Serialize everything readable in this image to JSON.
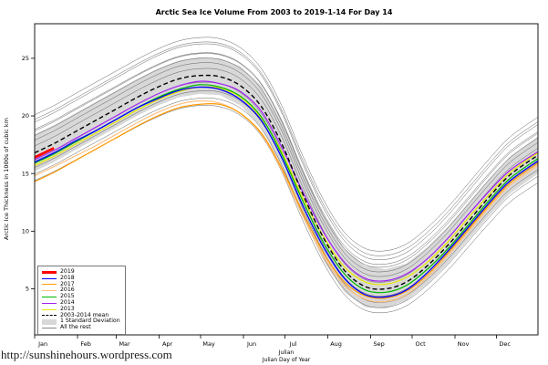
{
  "page": {
    "footer_url": "http://sunshinehours.wordpress.com"
  },
  "chart_data": {
    "type": "line",
    "title": "Arctic Sea Ice Volume From 2003 to 2019-1-14  For Day 14",
    "ylabel": "Arctic Ice Thickness in 1000s of cubic km",
    "xlabel_line1": "Julian",
    "xlabel_line2": "Julian Day of Year",
    "xlim": [
      1,
      365
    ],
    "ylim": [
      1,
      28
    ],
    "yticks": [
      5,
      10,
      15,
      20,
      25
    ],
    "month_labels": [
      "Jan",
      "Feb",
      "Mar",
      "Apr",
      "May",
      "Jun",
      "Jul",
      "Aug",
      "Sep",
      "Oct",
      "Nov",
      "Dec"
    ],
    "month_start_days": [
      1,
      32,
      60,
      91,
      121,
      152,
      182,
      213,
      244,
      274,
      305,
      335
    ],
    "x_days": [
      1,
      15,
      30,
      45,
      60,
      75,
      90,
      105,
      120,
      135,
      150,
      165,
      180,
      195,
      210,
      225,
      240,
      255,
      270,
      285,
      300,
      315,
      330,
      345,
      365
    ],
    "mean": [
      16.8,
      17.6,
      18.6,
      19.6,
      20.6,
      21.6,
      22.5,
      23.2,
      23.5,
      23.4,
      22.6,
      20.8,
      17.5,
      13.2,
      9.4,
      6.6,
      5.2,
      5.0,
      5.6,
      7.0,
      8.8,
      10.9,
      13.0,
      14.9,
      16.6
    ],
    "std": [
      1.6,
      1.6,
      1.6,
      1.6,
      1.6,
      1.6,
      1.6,
      1.6,
      1.6,
      1.6,
      1.7,
      1.8,
      1.9,
      2.0,
      2.0,
      1.9,
      1.8,
      1.7,
      1.6,
      1.6,
      1.6,
      1.6,
      1.6,
      1.6,
      1.6
    ],
    "band_color": "#D8D8D8",
    "rest_color": "#606060",
    "rest_lines": [
      {
        "scale": 1.0,
        "shift": 3.3
      },
      {
        "scale": 1.0,
        "shift": 2.9
      },
      {
        "scale": 1.01,
        "shift": 2.5
      },
      {
        "scale": 0.99,
        "shift": 2.2
      },
      {
        "scale": 1.0,
        "shift": 1.9
      },
      {
        "scale": 1.0,
        "shift": 1.5
      },
      {
        "scale": 1.0,
        "shift": 1.1
      },
      {
        "scale": 1.0,
        "shift": 0.6
      },
      {
        "scale": 1.0,
        "shift": -0.6
      },
      {
        "scale": 0.99,
        "shift": -1.1
      },
      {
        "scale": 0.98,
        "shift": -1.5
      },
      {
        "scale": 0.97,
        "shift": -1.9
      }
    ],
    "series": [
      {
        "name": "2013",
        "color": "#E8E800",
        "width": 1.2,
        "values": [
          15.7,
          16.5,
          17.5,
          18.5,
          19.5,
          20.5,
          21.4,
          22.1,
          22.5,
          22.4,
          21.6,
          19.8,
          16.8,
          12.9,
          9.5,
          6.9,
          5.6,
          5.4,
          6.0,
          7.3,
          9.1,
          11.2,
          13.2,
          15.1,
          16.8
        ]
      },
      {
        "name": "2016",
        "color": "#FFC080",
        "width": 1.2,
        "values": [
          14.8,
          15.6,
          16.5,
          17.4,
          18.4,
          19.4,
          20.3,
          21.0,
          21.3,
          21.1,
          20.2,
          18.4,
          15.2,
          11.3,
          7.8,
          5.3,
          4.1,
          3.9,
          4.5,
          6.0,
          7.9,
          10.0,
          12.1,
          14.0,
          15.7
        ]
      },
      {
        "name": "2017",
        "color": "#FF9900",
        "width": 1.2,
        "values": [
          14.3,
          15.1,
          16.1,
          17.1,
          18.1,
          19.1,
          20.0,
          20.7,
          21.0,
          21.0,
          20.2,
          18.5,
          15.4,
          11.6,
          8.1,
          5.6,
          4.4,
          4.2,
          4.8,
          6.2,
          8.1,
          10.2,
          12.3,
          14.2,
          15.9
        ]
      },
      {
        "name": "2015",
        "color": "#00B800",
        "width": 1.2,
        "values": [
          15.9,
          16.7,
          17.7,
          18.7,
          19.7,
          20.7,
          21.6,
          22.3,
          22.7,
          22.5,
          21.7,
          19.9,
          16.6,
          12.6,
          9.0,
          6.3,
          4.9,
          4.7,
          5.3,
          6.7,
          8.5,
          10.6,
          12.7,
          14.6,
          16.3
        ]
      },
      {
        "name": "2014",
        "color": "#A020F0",
        "width": 1.2,
        "values": [
          16.2,
          17.0,
          18.0,
          19.0,
          20.0,
          21.0,
          21.9,
          22.6,
          23.0,
          22.8,
          22.1,
          20.4,
          17.2,
          13.4,
          9.9,
          7.3,
          5.9,
          5.7,
          6.3,
          7.6,
          9.4,
          11.5,
          13.5,
          15.3,
          16.9
        ]
      },
      {
        "name": "2018",
        "color": "#0000FF",
        "width": 1.3,
        "values": [
          16.0,
          16.8,
          17.8,
          18.7,
          19.7,
          20.7,
          21.5,
          22.2,
          22.5,
          22.3,
          21.4,
          19.6,
          16.3,
          12.2,
          8.6,
          5.9,
          4.5,
          4.3,
          4.9,
          6.4,
          8.3,
          10.4,
          12.5,
          14.4,
          16.1
        ]
      },
      {
        "name": "mean",
        "color": "#000000",
        "width": 1.4,
        "dash": "5,3",
        "use_mean": true
      },
      {
        "name": "2019",
        "color": "#FF0000",
        "width": 2.8,
        "values": [
          16.4,
          17.2,
          null,
          null,
          null,
          null,
          null,
          null,
          null,
          null,
          null,
          null,
          null,
          null,
          null,
          null,
          null,
          null,
          null,
          null,
          null,
          null,
          null,
          null,
          null
        ]
      }
    ]
  },
  "legend": {
    "entries": [
      {
        "id": "2019",
        "label": "2019",
        "color": "#FF0000",
        "style": "thick-line"
      },
      {
        "id": "2018",
        "label": "2018",
        "color": "#0000FF",
        "style": "line"
      },
      {
        "id": "2017",
        "label": "2017",
        "color": "#FF9900",
        "style": "line"
      },
      {
        "id": "2016",
        "label": "2016",
        "color": "#FFC080",
        "style": "line"
      },
      {
        "id": "2015",
        "label": "2015",
        "color": "#00B800",
        "style": "line"
      },
      {
        "id": "2014",
        "label": "2014",
        "color": "#A020F0",
        "style": "line"
      },
      {
        "id": "2013",
        "label": "2013",
        "color": "#E8E800",
        "style": "line"
      },
      {
        "id": "mean",
        "label": "2003-2014 mean",
        "color": "#000000",
        "style": "dashed-line"
      },
      {
        "id": "std",
        "label": "1 Standard Deviation",
        "color": "#D8D8D8",
        "style": "band"
      },
      {
        "id": "rest",
        "label": "All the rest",
        "color": "#888888",
        "style": "thin-line"
      }
    ]
  }
}
